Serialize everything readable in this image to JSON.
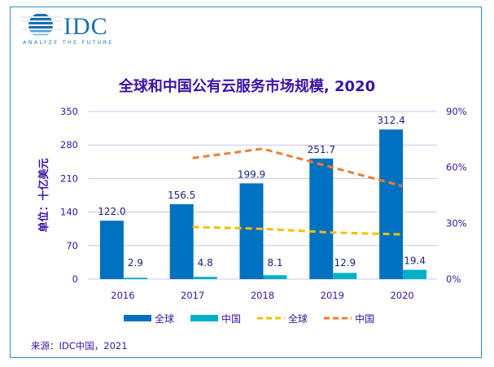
{
  "logo": {
    "brand": "IDC",
    "tagline": "ANALYZE THE FUTURE"
  },
  "chart_data": {
    "type": "bar",
    "title": "全球和中国公有云服务市场规模, 2020",
    "ylabel": "单位：十亿美元",
    "categories": [
      "2016",
      "2017",
      "2018",
      "2019",
      "2020"
    ],
    "ylim": [
      0,
      350
    ],
    "yticks": [
      "0",
      "70",
      "140",
      "210",
      "280",
      "350"
    ],
    "y2lim": [
      0,
      90
    ],
    "y2ticks": [
      "0%",
      "30%",
      "60%",
      "90%"
    ],
    "grid": true,
    "legend_position": "bottom",
    "colors": {
      "global_bar": "#0070c0",
      "china_bar": "#00b0c8",
      "global_line": "#f0c000",
      "china_line": "#ed7d31"
    },
    "series": [
      {
        "name": "全球",
        "kind": "bar",
        "axis": "left",
        "values": [
          122.0,
          156.5,
          199.9,
          251.7,
          312.4
        ],
        "labels": [
          "122.0",
          "156.5",
          "199.9",
          "251.7",
          "312.4"
        ]
      },
      {
        "name": "中国",
        "kind": "bar",
        "axis": "left",
        "values": [
          2.9,
          4.8,
          8.1,
          12.9,
          19.4
        ],
        "labels": [
          "2.9",
          "4.8",
          "8.1",
          "12.9",
          "19.4"
        ]
      },
      {
        "name": "全球",
        "kind": "line-dashed",
        "axis": "right",
        "values": [
          null,
          28,
          27,
          25,
          24
        ]
      },
      {
        "name": "中国",
        "kind": "line-dashed",
        "axis": "right",
        "values": [
          null,
          65,
          70,
          60,
          50
        ]
      }
    ]
  },
  "source": "来源：IDC中国，2021"
}
